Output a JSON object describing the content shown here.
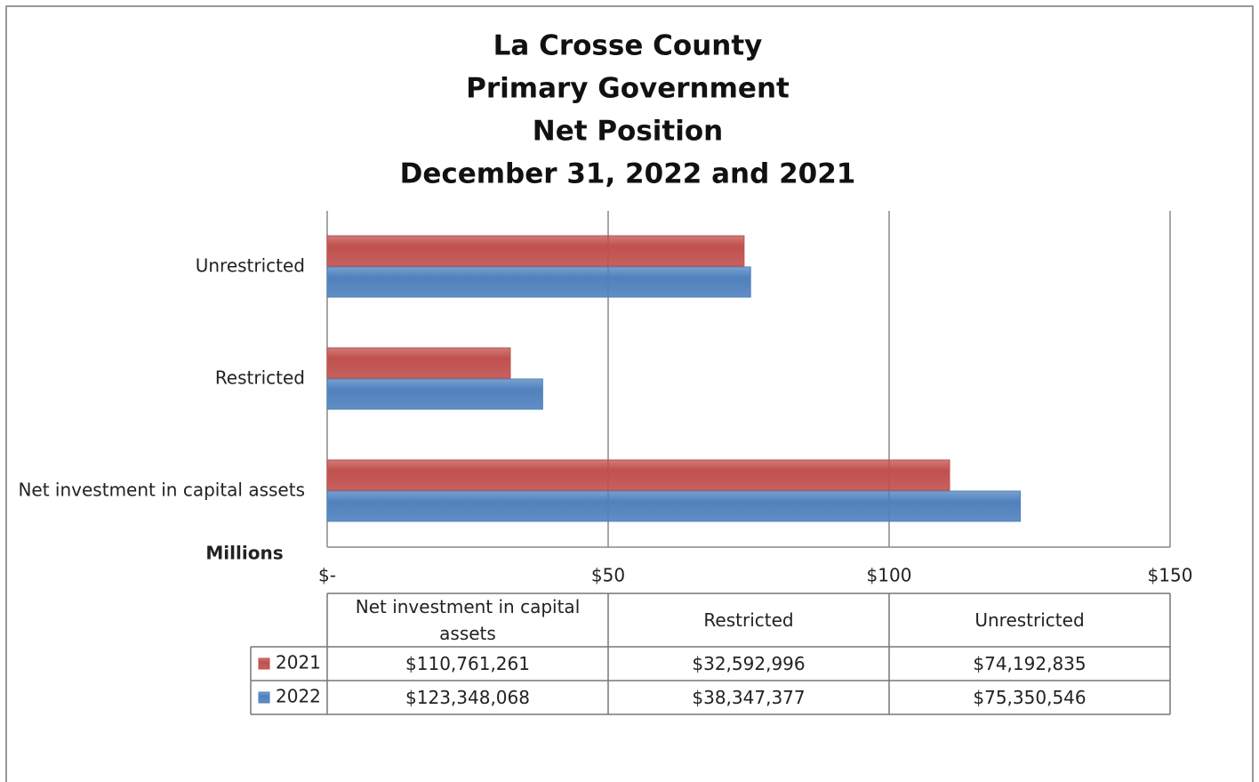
{
  "chart_data": {
    "type": "bar",
    "orientation": "horizontal",
    "title": [
      "La Crosse County",
      "Primary Government",
      "Net Position",
      "December 31, 2022 and 2021"
    ],
    "x_axis_label": "Millions",
    "categories": [
      "Net investment in capital assets",
      "Restricted",
      "Unrestricted"
    ],
    "series": [
      {
        "name": "2021",
        "color": "#c0504d",
        "values": [
          110.761261,
          32.592996,
          74.192835
        ],
        "value_labels": [
          "$110,761,261",
          "$32,592,996",
          "$74,192,835"
        ]
      },
      {
        "name": "2022",
        "color": "#4f81bd",
        "values": [
          123.348068,
          38.347377,
          75.350546
        ],
        "value_labels": [
          "$123,348,068",
          "$38,347,377",
          "$75,350,546"
        ]
      }
    ],
    "xlim": [
      0,
      150
    ],
    "xticks": [
      {
        "value": 0,
        "label": "$-"
      },
      {
        "value": 50,
        "label": "$50"
      },
      {
        "value": 100,
        "label": "$100"
      },
      {
        "value": 150,
        "label": "$150"
      }
    ],
    "grid": true
  }
}
